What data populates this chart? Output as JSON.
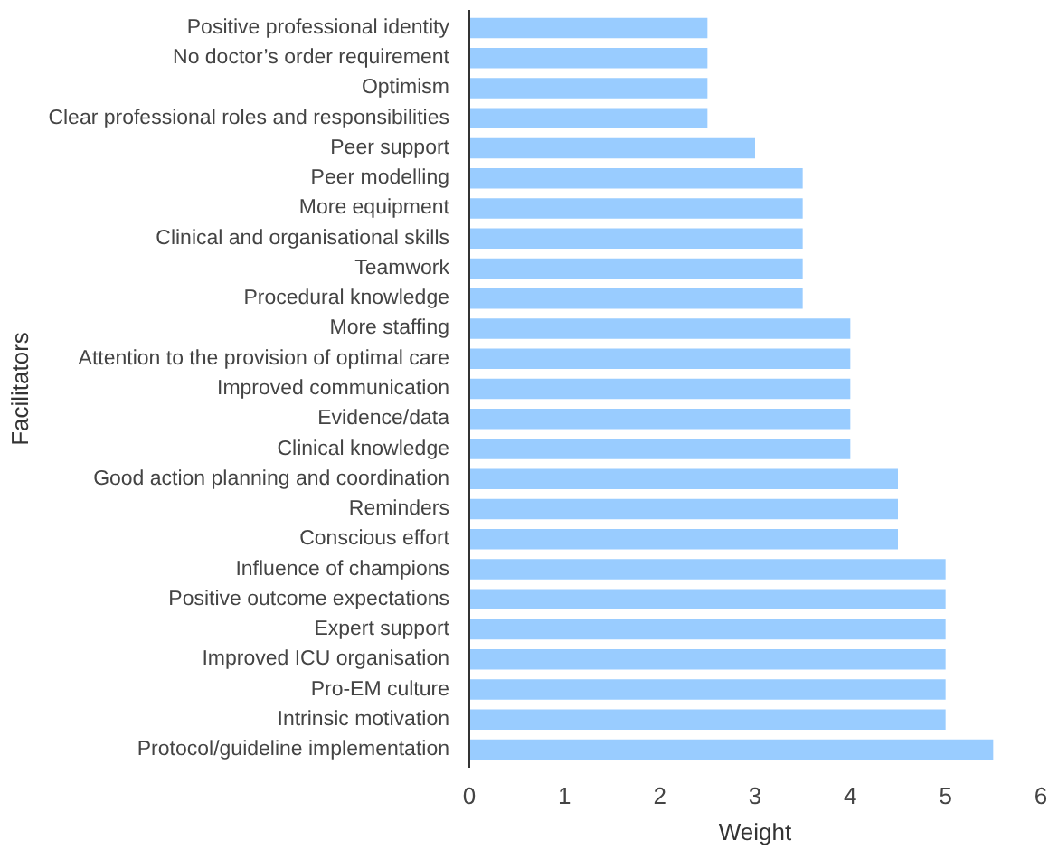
{
  "chart_data": {
    "type": "bar",
    "orientation": "horizontal",
    "xlabel": "Weight",
    "ylabel": "Facilitators",
    "categories": [
      "Positive professional identity",
      "No doctor’s order requirement",
      "Optimism",
      "Clear professional roles and responsibilities",
      "Peer support",
      "Peer modelling",
      "More equipment",
      "Clinical and organisational skills",
      "Teamwork",
      "Procedural knowledge",
      "More staffing",
      "Attention to the provision of optimal care",
      "Improved communication",
      "Evidence/data",
      "Clinical knowledge",
      "Good action planning and coordination",
      "Reminders",
      "Conscious effort",
      "Influence of champions",
      "Positive outcome expectations",
      "Expert support",
      "Improved ICU organisation",
      "Pro-EM culture",
      "Intrinsic motivation",
      "Protocol/guideline implementation"
    ],
    "values": [
      2.5,
      2.5,
      2.5,
      2.5,
      3,
      3.5,
      3.5,
      3.5,
      3.5,
      3.5,
      4,
      4,
      4,
      4,
      4,
      4.5,
      4.5,
      4.5,
      5,
      5,
      5,
      5,
      5,
      5,
      5.5
    ],
    "color": "#99ccff",
    "xlim": [
      0,
      6
    ],
    "xticks": [
      0,
      1,
      2,
      3,
      4,
      5,
      6
    ]
  }
}
